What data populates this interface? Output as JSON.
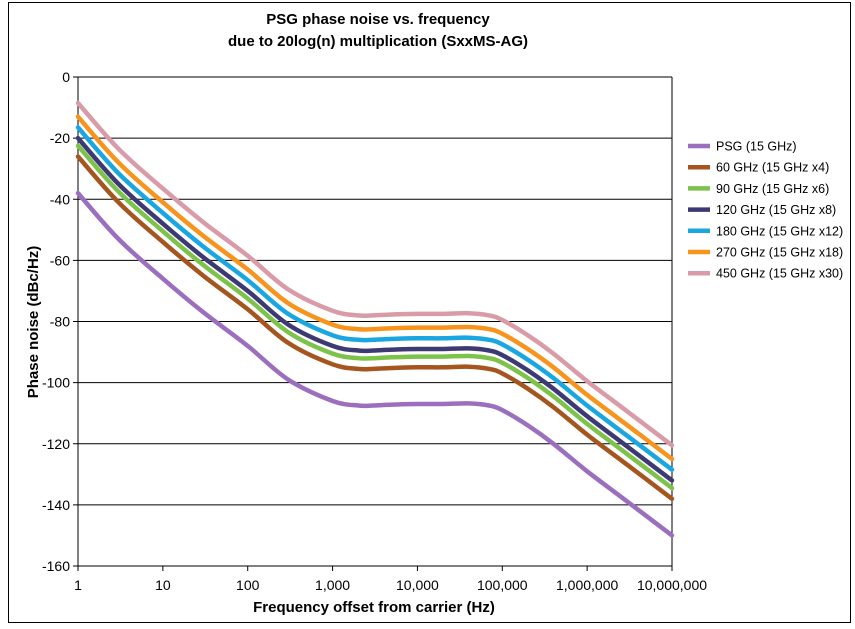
{
  "chart_data": {
    "type": "line",
    "title": "PSG phase noise vs. frequency",
    "subtitle": "due to 20log(n) multiplication (SxxMS-AG)",
    "xlabel": "Frequency offset from carrier (Hz)",
    "ylabel": "Phase noise (dBc/Hz)",
    "x_scale": "log",
    "xlim": [
      1,
      10000000
    ],
    "ylim": [
      -160,
      0
    ],
    "grid": "horizontal",
    "legend_position": "right",
    "x_ticks": [
      1,
      10,
      100,
      1000,
      10000,
      100000,
      1000000,
      10000000
    ],
    "x_tick_labels": [
      "1",
      "10",
      "100",
      "1,000",
      "10,000",
      "100,000",
      "1,000,000",
      "10,000,000"
    ],
    "y_ticks": [
      0,
      -20,
      -40,
      -60,
      -80,
      -100,
      -120,
      -140,
      -160
    ],
    "y_tick_labels": [
      "0",
      "-20",
      "-40",
      "-60",
      "-80",
      "-100",
      "-120",
      "-140",
      "-160"
    ],
    "x": [
      1,
      3,
      10,
      30,
      100,
      300,
      1000,
      2000,
      3000,
      5000,
      10000,
      20000,
      40000,
      70000,
      100000,
      200000,
      400000,
      1000000,
      3000000,
      10000000
    ],
    "series": [
      {
        "name": "PSG (15 GHz)",
        "color": "#9b6fbe",
        "values": [
          -38,
          -53,
          -66,
          -77,
          -88,
          -99,
          -106,
          -107.5,
          -107.5,
          -107.2,
          -107,
          -107,
          -106.8,
          -107.5,
          -109,
          -114,
          -120,
          -129,
          -139,
          -150
        ]
      },
      {
        "name": "60 GHz (15 GHz x4)",
        "color": "#a5561f",
        "values": [
          -26,
          -41,
          -54,
          -65,
          -76,
          -87,
          -94,
          -95.5,
          -95.5,
          -95.2,
          -95,
          -95,
          -94.8,
          -95.5,
          -97,
          -102,
          -108,
          -117,
          -127,
          -138
        ]
      },
      {
        "name": "90 GHz (15 GHz x6)",
        "color": "#7dc24a",
        "values": [
          -22.5,
          -37.5,
          -50.5,
          -61.5,
          -72.5,
          -83.5,
          -90.5,
          -92,
          -92,
          -91.7,
          -91.5,
          -91.5,
          -91.3,
          -92,
          -93.5,
          -98.5,
          -104.5,
          -113.5,
          -123.5,
          -134.5
        ]
      },
      {
        "name": "120 GHz (15 GHz x8)",
        "color": "#3d3a73",
        "values": [
          -20,
          -35,
          -48,
          -59,
          -70,
          -81,
          -88,
          -89.5,
          -89.5,
          -89.2,
          -89,
          -89,
          -88.8,
          -89.5,
          -91,
          -96,
          -102,
          -111,
          -121,
          -132
        ]
      },
      {
        "name": "180 GHz (15 GHz x12)",
        "color": "#1aa6e0",
        "values": [
          -16.5,
          -31.5,
          -44.5,
          -55.5,
          -66.5,
          -77.5,
          -84.5,
          -86,
          -86,
          -85.7,
          -85.5,
          -85.5,
          -85.3,
          -86,
          -87.5,
          -92.5,
          -98.5,
          -107.5,
          -117.5,
          -128.5
        ]
      },
      {
        "name": "270 GHz (15 GHz x18)",
        "color": "#f7941d",
        "values": [
          -13,
          -28,
          -41,
          -52,
          -63,
          -74,
          -81,
          -82.5,
          -82.5,
          -82.2,
          -82,
          -82,
          -81.8,
          -82.5,
          -84,
          -89,
          -95,
          -104,
          -114,
          -125
        ]
      },
      {
        "name": "450 GHz (15 GHz x30)",
        "color": "#d99ba8",
        "values": [
          -8.5,
          -23.5,
          -36.5,
          -47.5,
          -58.5,
          -69.5,
          -76.5,
          -78,
          -78,
          -77.7,
          -77.5,
          -77.5,
          -77.3,
          -78,
          -79.5,
          -84.5,
          -90.5,
          -99.5,
          -109.5,
          -120.5
        ]
      }
    ]
  }
}
